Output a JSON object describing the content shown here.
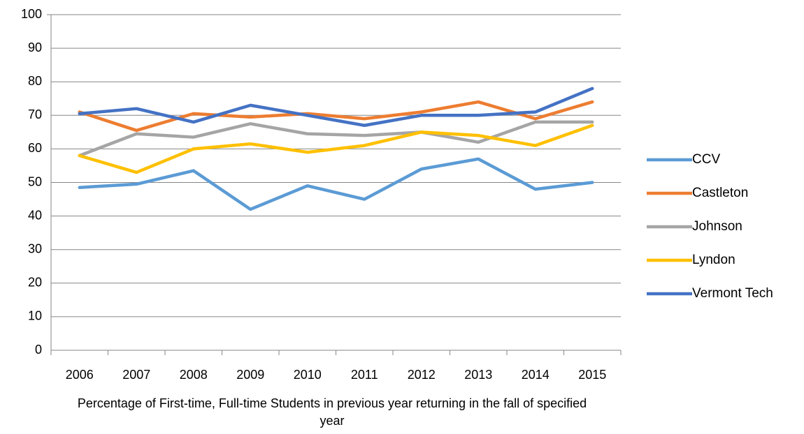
{
  "chart_data": {
    "type": "line",
    "x_label": "Percentage of First-time, Full-time Students in previous year returning in the fall of specified year",
    "categories": [
      "2006",
      "2007",
      "2008",
      "2009",
      "2010",
      "2011",
      "2012",
      "2013",
      "2014",
      "2015"
    ],
    "series": [
      {
        "name": "CCV",
        "color": "#5b9bd5",
        "values": [
          48.5,
          49.5,
          53.5,
          42,
          49,
          45,
          54,
          57,
          48,
          50
        ]
      },
      {
        "name": "Castleton",
        "color": "#ed7d31",
        "values": [
          71,
          65.5,
          70.5,
          69.5,
          70.5,
          69,
          71,
          74,
          69,
          74
        ]
      },
      {
        "name": "Johnson",
        "color": "#a5a5a5",
        "values": [
          58,
          64.5,
          63.5,
          67.5,
          64.5,
          64,
          65,
          62,
          68,
          68
        ]
      },
      {
        "name": "Lyndon",
        "color": "#ffc000",
        "values": [
          58,
          53,
          60,
          61.5,
          59,
          61,
          65,
          64,
          61,
          67
        ]
      },
      {
        "name": "Vermont Tech",
        "color": "#4472c4",
        "values": [
          70.5,
          72,
          68,
          73,
          70,
          67,
          70,
          70,
          71,
          78
        ]
      }
    ],
    "ylim": [
      0,
      100
    ],
    "yticks": [
      0,
      10,
      20,
      30,
      40,
      50,
      60,
      70,
      80,
      90,
      100
    ],
    "grid": true,
    "legend": "right"
  }
}
